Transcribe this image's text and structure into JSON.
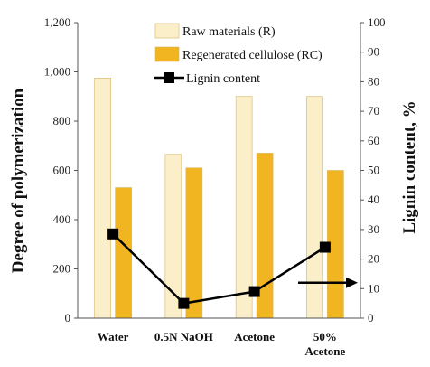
{
  "chart_data": {
    "type": "bar",
    "categories": [
      [
        "Water"
      ],
      [
        "0.5N NaOH"
      ],
      [
        "Acetone"
      ],
      [
        "50%",
        "Acetone"
      ]
    ],
    "series": [
      {
        "name": "Raw materials (R)",
        "kind": "bar",
        "axis": "left",
        "color": "#fbefca",
        "values": [
          975,
          665,
          900,
          900
        ]
      },
      {
        "name": "Regenerated cellulose (RC)",
        "kind": "bar",
        "axis": "left",
        "color": "#f0b521",
        "values": [
          530,
          610,
          670,
          600
        ]
      },
      {
        "name": "Lignin content",
        "kind": "line",
        "axis": "right",
        "color": "#000000",
        "values": [
          28.5,
          5,
          9,
          24
        ]
      }
    ],
    "ylabel": "Degree of polymerization",
    "ylabel_right": "Lignin content, %",
    "ylim": [
      0,
      1200
    ],
    "ylim_right": [
      0,
      100
    ],
    "yticks": [
      "0",
      "200",
      "400",
      "600",
      "800",
      "1,000",
      "1,200"
    ],
    "yticks_right": [
      "0",
      "10",
      "20",
      "30",
      "40",
      "50",
      "60",
      "70",
      "80",
      "90",
      "100"
    ],
    "legend": "top-right",
    "grid": false
  }
}
